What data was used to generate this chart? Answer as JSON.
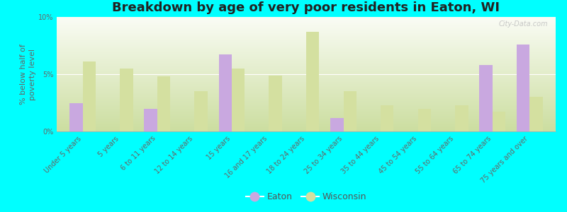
{
  "title": "Breakdown by age of very poor residents in Eaton, WI",
  "ylabel": "% below half of\npoverty level",
  "categories": [
    "Under 5 years",
    "5 years",
    "6 to 11 years",
    "12 to 14 years",
    "15 years",
    "16 and 17 years",
    "18 to 24 years",
    "25 to 34 years",
    "35 to 44 years",
    "45 to 54 years",
    "55 to 64 years",
    "65 to 74 years",
    "75 years and over"
  ],
  "eaton": [
    2.5,
    0.0,
    2.0,
    0.0,
    6.7,
    0.0,
    0.0,
    1.2,
    0.0,
    0.0,
    0.0,
    5.8,
    7.6
  ],
  "wisconsin": [
    6.1,
    5.5,
    4.8,
    3.5,
    5.5,
    4.9,
    8.7,
    3.5,
    2.3,
    2.0,
    2.3,
    1.7,
    3.0
  ],
  "eaton_color": "#c9a8e0",
  "wisconsin_color": "#d4e0a0",
  "background_color": "#00ffff",
  "gradient_top": "#fafcf5",
  "gradient_bottom": "#ccdea0",
  "ylim": [
    0,
    10
  ],
  "yticks": [
    0,
    5,
    10
  ],
  "ytick_labels": [
    "0%",
    "5%",
    "10%"
  ],
  "bar_width": 0.35,
  "title_fontsize": 13,
  "axis_label_fontsize": 8,
  "tick_fontsize": 7,
  "legend_labels": [
    "Eaton",
    "Wisconsin"
  ],
  "watermark": "City-Data.com"
}
